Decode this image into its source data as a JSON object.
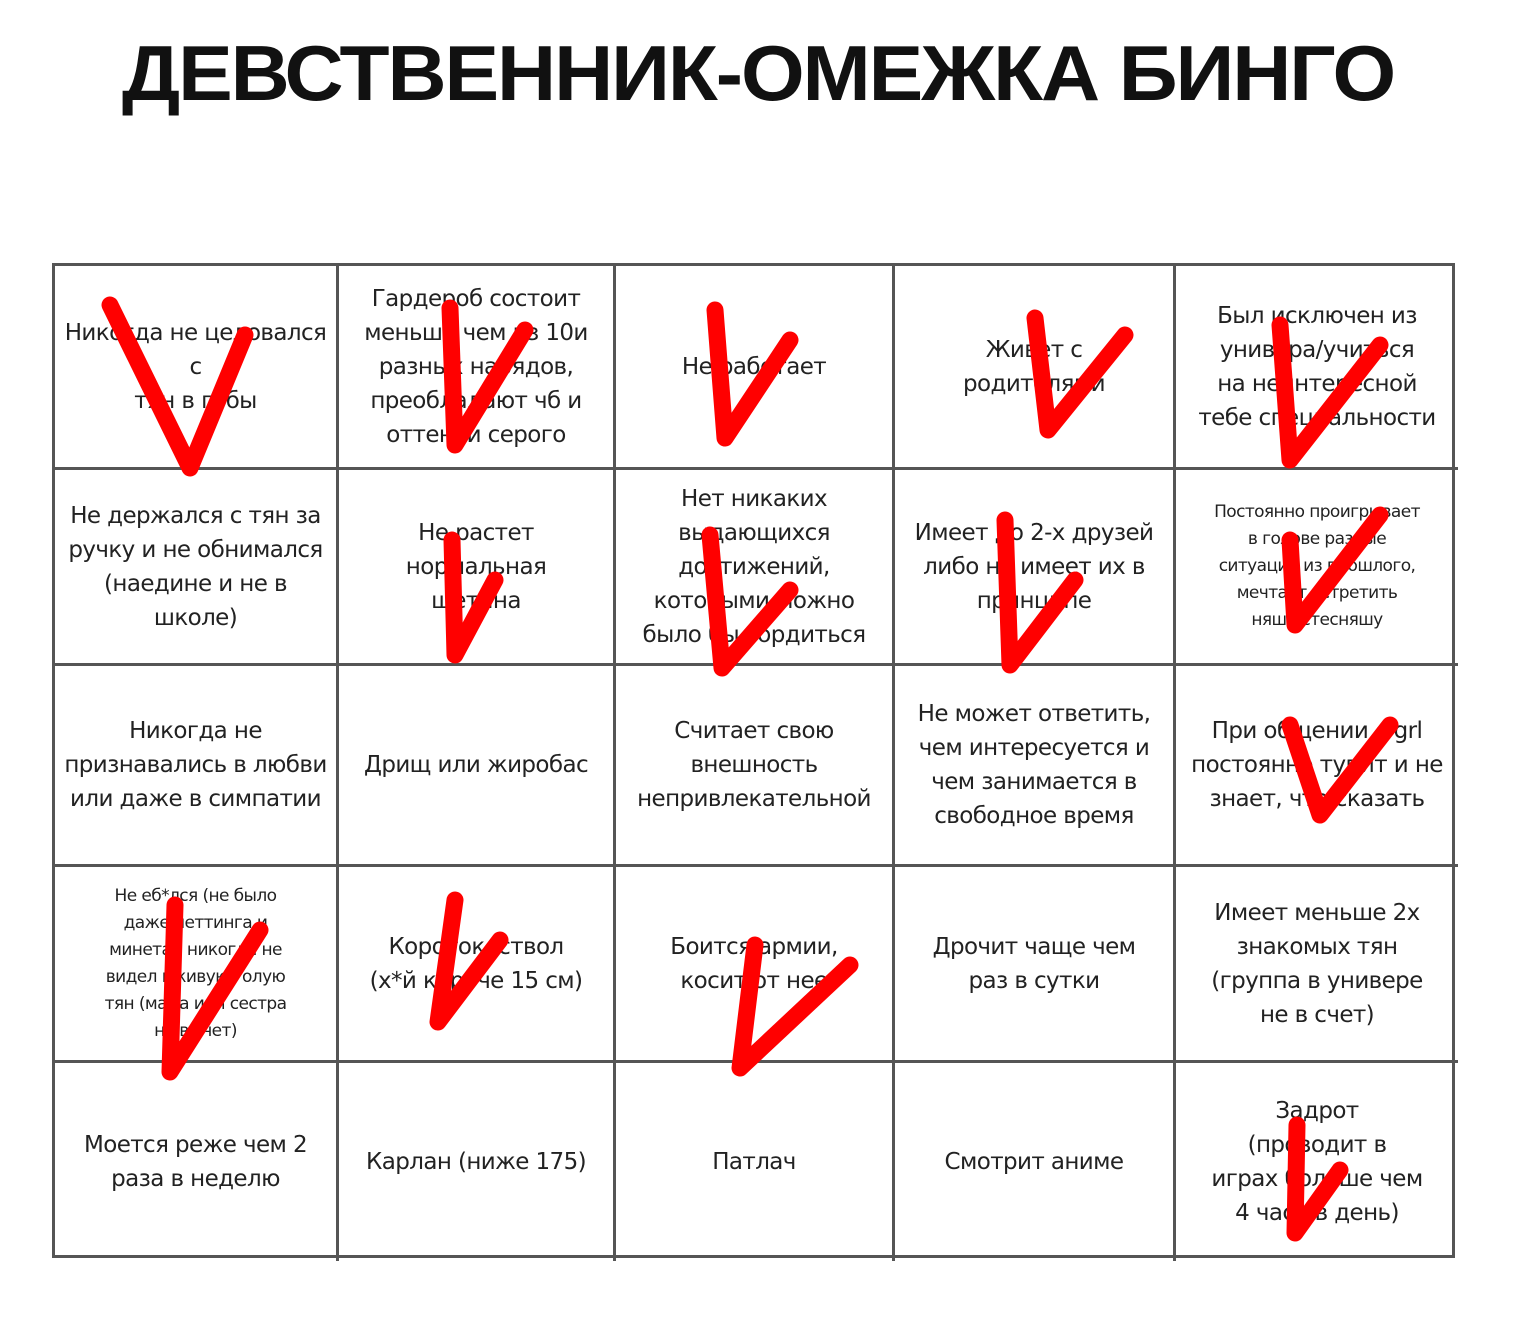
{
  "title": "ДЕВСТВЕННИК-ОМЕЖКА БИНГО",
  "check_color": "#ff0000",
  "cells": [
    [
      {
        "text": "Никогда не целовался с\nтян в губы",
        "checked": true
      },
      {
        "text": "Гардероб состоит\nменьше чем из 10и\nразных нарядов,\nпреобладают чб и\nоттенки серого",
        "checked": true
      },
      {
        "text": "Не работает",
        "checked": true
      },
      {
        "text": "Живет с\nродителями",
        "checked": true
      },
      {
        "text": "Был исключен из\nунивера/учиться\nна неинтересной\nтебе специальности",
        "checked": true
      }
    ],
    [
      {
        "text": "Не держался с тян за\nручку и не обнимался\n(наедине и не в\nшколе)",
        "checked": false
      },
      {
        "text": "Не растет\nнормальная\nщетина",
        "checked": true
      },
      {
        "text": "Нет никаких\nвыдающихся\nдостижений,\nкоторыми можно\nбыло бы гордиться",
        "checked": true
      },
      {
        "text": "Имеет до 2-х друзей\nлибо не имеет их в\nпринципе",
        "checked": true
      },
      {
        "text": "Постоянно проигрывает\nв голове разные\nситуации из прошлого,\nмечтает встретить\nняшу-стесняшу",
        "checked": true,
        "small": true
      }
    ],
    [
      {
        "text": "Никогда не\nпризнавались в любви\nили даже в симпатии",
        "checked": false
      },
      {
        "text": "Дрищ или жиробас",
        "checked": false
      },
      {
        "text": "Считает свою\nвнешность\nнепривлекательной",
        "checked": false
      },
      {
        "text": "Не может ответить,\nчем интересуется и\nчем занимается в\nсвободное время",
        "checked": false
      },
      {
        "text": "При общении с grl\nпостоянно тупит и не\nзнает, что сказать",
        "checked": true
      }
    ],
    [
      {
        "text": "Не еб*лся (не было\nдаже петтинга и\nминета), никогда не\nвидел вживую голую\nтян (мама или сестра\nне в счет)",
        "checked": true,
        "small": true
      },
      {
        "text": "Коротокоствол\n(х*й короче 15 см)",
        "checked": true
      },
      {
        "text": "Боится армии,\nкосит от нее",
        "checked": true
      },
      {
        "text": "Дрочит чаще чем\nраз в сутки",
        "checked": false
      },
      {
        "text": "Имеет меньше 2х\nзнакомых тян\n(группа в универе\nне в счет)",
        "checked": false
      }
    ],
    [
      {
        "text": "Моется реже чем 2\nраза в неделю",
        "checked": false
      },
      {
        "text": "Карлан (ниже 175)",
        "checked": false
      },
      {
        "text": "Патлач",
        "checked": false
      },
      {
        "text": "Смотрит аниме",
        "checked": false
      },
      {
        "text": "Задрот\n(проводит в\nиграх больше чем\n4 часа в день)",
        "checked": true
      }
    ]
  ]
}
